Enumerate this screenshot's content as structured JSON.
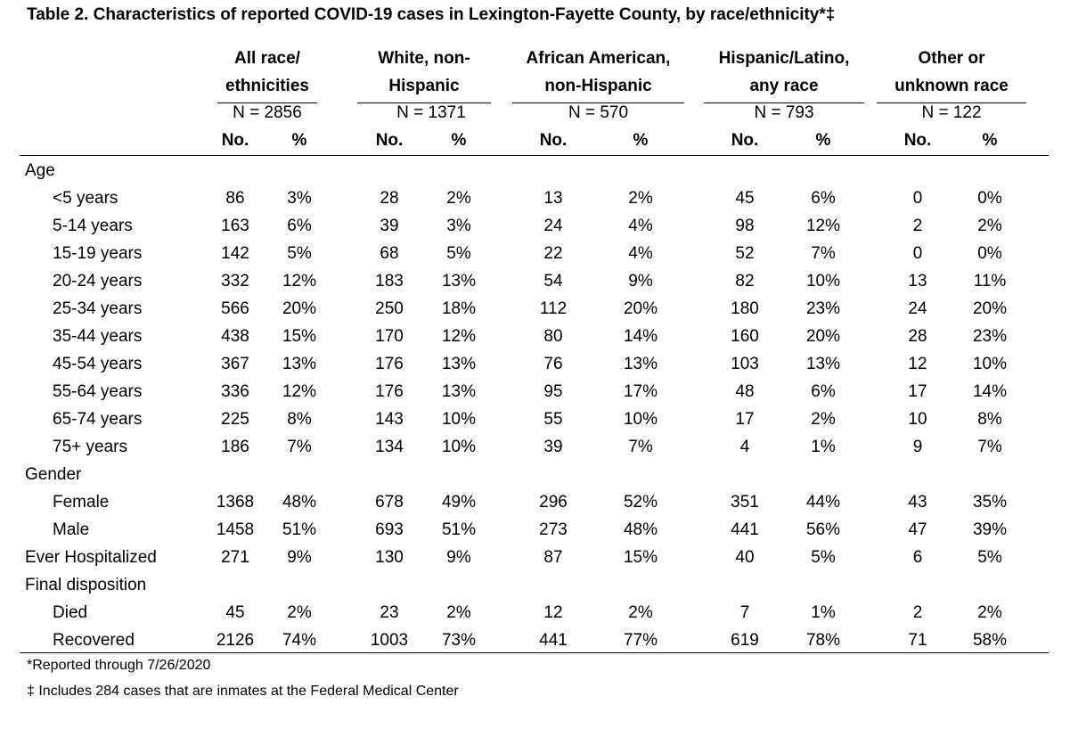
{
  "title": "Table 2. Characteristics of reported COVID-19 cases in Lexington-Fayette County, by race/ethnicity*‡",
  "groups": [
    {
      "line1": "All race/",
      "line2": "ethnicities",
      "n": "N = 2856"
    },
    {
      "line1": "White, non-",
      "line2": "Hispanic",
      "n": "N = 1371"
    },
    {
      "line1": "African American,",
      "line2": "non-Hispanic",
      "n": "N = 570"
    },
    {
      "line1": "Hispanic/Latino,",
      "line2": "any race",
      "n": "N = 793"
    },
    {
      "line1": "Other or",
      "line2": "unknown race",
      "n": "N = 122"
    }
  ],
  "col_headers": [
    "No.",
    "%",
    "No.",
    "%",
    "No.",
    "%",
    "No.",
    "%",
    "No.",
    "%"
  ],
  "rows": [
    {
      "label": "Age",
      "indent": false,
      "values": []
    },
    {
      "label": "<5 years",
      "indent": true,
      "values": [
        "86",
        "3%",
        "28",
        "2%",
        "13",
        "2%",
        "45",
        "6%",
        "0",
        "0%"
      ]
    },
    {
      "label": "5-14 years",
      "indent": true,
      "values": [
        "163",
        "6%",
        "39",
        "3%",
        "24",
        "4%",
        "98",
        "12%",
        "2",
        "2%"
      ]
    },
    {
      "label": "15-19 years",
      "indent": true,
      "values": [
        "142",
        "5%",
        "68",
        "5%",
        "22",
        "4%",
        "52",
        "7%",
        "0",
        "0%"
      ]
    },
    {
      "label": "20-24 years",
      "indent": true,
      "values": [
        "332",
        "12%",
        "183",
        "13%",
        "54",
        "9%",
        "82",
        "10%",
        "13",
        "11%"
      ]
    },
    {
      "label": "25-34 years",
      "indent": true,
      "values": [
        "566",
        "20%",
        "250",
        "18%",
        "112",
        "20%",
        "180",
        "23%",
        "24",
        "20%"
      ]
    },
    {
      "label": "35-44 years",
      "indent": true,
      "values": [
        "438",
        "15%",
        "170",
        "12%",
        "80",
        "14%",
        "160",
        "20%",
        "28",
        "23%"
      ]
    },
    {
      "label": "45-54 years",
      "indent": true,
      "values": [
        "367",
        "13%",
        "176",
        "13%",
        "76",
        "13%",
        "103",
        "13%",
        "12",
        "10%"
      ]
    },
    {
      "label": "55-64 years",
      "indent": true,
      "values": [
        "336",
        "12%",
        "176",
        "13%",
        "95",
        "17%",
        "48",
        "6%",
        "17",
        "14%"
      ]
    },
    {
      "label": "65-74 years",
      "indent": true,
      "values": [
        "225",
        "8%",
        "143",
        "10%",
        "55",
        "10%",
        "17",
        "2%",
        "10",
        "8%"
      ]
    },
    {
      "label": "75+ years",
      "indent": true,
      "values": [
        "186",
        "7%",
        "134",
        "10%",
        "39",
        "7%",
        "4",
        "1%",
        "9",
        "7%"
      ]
    },
    {
      "label": "Gender",
      "indent": false,
      "values": []
    },
    {
      "label": "Female",
      "indent": true,
      "values": [
        "1368",
        "48%",
        "678",
        "49%",
        "296",
        "52%",
        "351",
        "44%",
        "43",
        "35%"
      ]
    },
    {
      "label": "Male",
      "indent": true,
      "values": [
        "1458",
        "51%",
        "693",
        "51%",
        "273",
        "48%",
        "441",
        "56%",
        "47",
        "39%"
      ]
    },
    {
      "label": "Ever Hospitalized",
      "indent": false,
      "values": [
        "271",
        "9%",
        "130",
        "9%",
        "87",
        "15%",
        "40",
        "5%",
        "6",
        "5%"
      ]
    },
    {
      "label": "Final disposition",
      "indent": false,
      "values": []
    },
    {
      "label": "Died",
      "indent": true,
      "values": [
        "45",
        "2%",
        "23",
        "2%",
        "12",
        "2%",
        "7",
        "1%",
        "2",
        "2%"
      ]
    },
    {
      "label": "Recovered",
      "indent": true,
      "values": [
        "2126",
        "74%",
        "1003",
        "73%",
        "441",
        "77%",
        "619",
        "78%",
        "71",
        "58%"
      ]
    }
  ],
  "footnotes": [
    "*Reported through 7/26/2020",
    "‡ Includes 284 cases that are inmates at the Federal Medical Center"
  ]
}
